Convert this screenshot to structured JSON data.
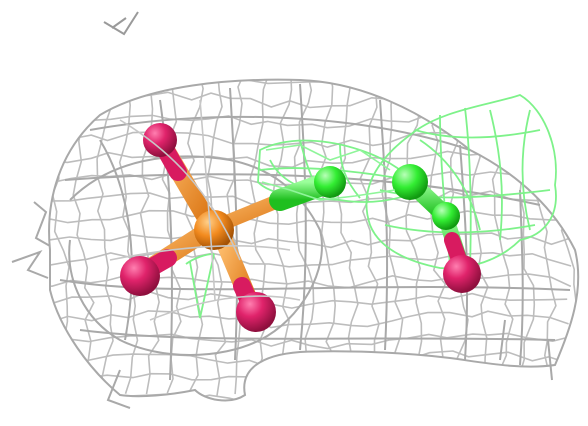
{
  "scene": {
    "background": "#ffffff",
    "colors": {
      "mesh_gray": "#b9b9b9",
      "mesh_gray_dark": "#a8a8a8",
      "mesh_green": "#7ef28a",
      "phosphorus": "#f28a1e",
      "oxygen": "#d81b60",
      "carbon": "#33ee33"
    },
    "objects": [
      "electron-density-mesh-gray",
      "electron-density-mesh-green",
      "phosphate-group",
      "ligand-carbon-chain",
      "axis-marker"
    ]
  }
}
